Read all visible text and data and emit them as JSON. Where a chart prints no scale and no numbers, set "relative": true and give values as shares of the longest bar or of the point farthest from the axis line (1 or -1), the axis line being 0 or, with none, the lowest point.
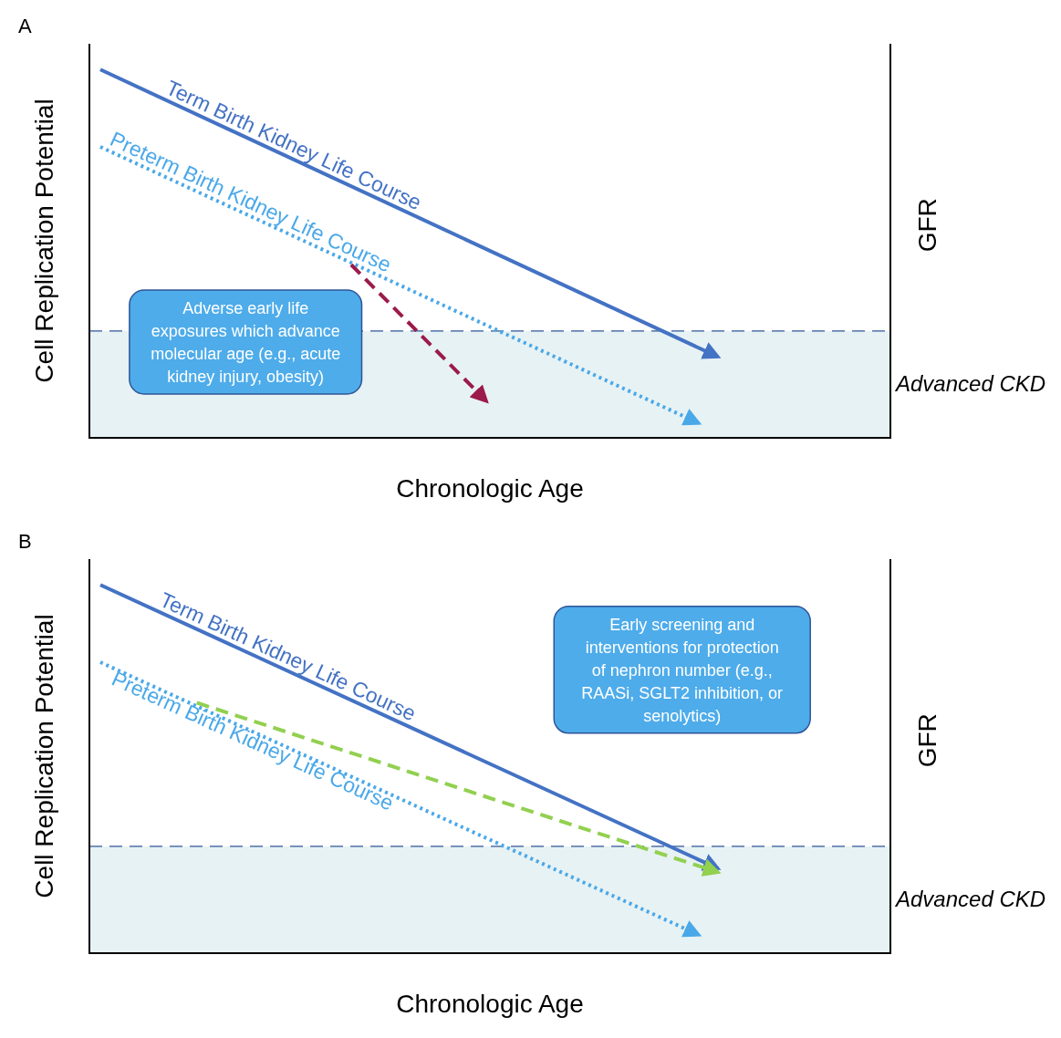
{
  "chart_data": [
    {
      "type": "line",
      "title": "A",
      "xlabel": "Chronologic Age",
      "ylabel": "Cell Replication Potential",
      "y2label": "GFR",
      "relative": true,
      "categories": [
        null,
        null,
        null,
        null,
        null,
        null,
        null,
        null,
        null,
        null,
        null,
        null,
        null,
        null,
        null,
        null,
        null,
        null,
        null,
        null,
        null,
        null,
        null,
        null,
        null,
        null,
        null,
        null,
        null,
        null,
        null,
        null,
        null,
        null,
        null,
        null,
        null,
        null,
        null,
        null,
        null
      ],
      "series": [
        {
          "name": "Term Birth Kidney Life Course",
          "color": "#4472c4",
          "line_style": "solid",
          "values": [
            1,
            null,
            null,
            null,
            null,
            null,
            null,
            null,
            null,
            null,
            null,
            null,
            null,
            null,
            null,
            null,
            null,
            null,
            null,
            null,
            null,
            null,
            null,
            null,
            null,
            null,
            null,
            null,
            null,
            null,
            null,
            null,
            0.22,
            null,
            null,
            null,
            null,
            null,
            null,
            null,
            null
          ]
        },
        {
          "name": "Preterm Birth Kidney Life Course",
          "color": "#4aa8e8",
          "line_style": "dotted",
          "values": [
            0.79,
            null,
            null,
            null,
            null,
            null,
            null,
            null,
            null,
            null,
            null,
            null,
            null,
            null,
            null,
            null,
            null,
            null,
            null,
            null,
            null,
            null,
            null,
            null,
            null,
            null,
            null,
            null,
            null,
            null,
            null,
            0.04,
            null,
            null,
            null,
            null,
            null,
            null,
            null,
            null,
            null
          ]
        },
        {
          "color": "#9b1b4b",
          "line_style": "dashed",
          "values": [
            null,
            null,
            null,
            null,
            null,
            null,
            null,
            null,
            null,
            null,
            null,
            null,
            null,
            0.47,
            null,
            null,
            null,
            null,
            null,
            null,
            0.1,
            null,
            null,
            null,
            null,
            null,
            null,
            null,
            null,
            null,
            null,
            null,
            null,
            null,
            null,
            null,
            null,
            null,
            null,
            null,
            null
          ]
        }
      ],
      "ref_lines": [
        {
          "axis": "y",
          "value": 0.29,
          "color": "#2f5597",
          "line_style": "dashed"
        }
      ],
      "bands": [
        {
          "axis": "y",
          "from": 0,
          "to": 0.29,
          "label": "Advanced CKD",
          "color": "#e7f2f4"
        }
      ],
      "annotations": [
        "Adverse early life exposures which advance molecular age (e.g., acute kidney injury, obesity)"
      ]
    },
    {
      "type": "line",
      "title": "B",
      "xlabel": "Chronologic Age",
      "ylabel": "Cell Replication Potential",
      "y2label": "GFR",
      "relative": true,
      "categories": [
        null,
        null,
        null,
        null,
        null,
        null,
        null,
        null,
        null,
        null,
        null,
        null,
        null,
        null,
        null,
        null,
        null,
        null,
        null,
        null,
        null,
        null,
        null,
        null,
        null,
        null,
        null,
        null,
        null,
        null,
        null,
        null,
        null,
        null,
        null,
        null,
        null,
        null,
        null,
        null,
        null
      ],
      "series": [
        {
          "name": "Term Birth Kidney Life Course",
          "color": "#4472c4",
          "line_style": "solid",
          "values": [
            1,
            null,
            null,
            null,
            null,
            null,
            null,
            null,
            null,
            null,
            null,
            null,
            null,
            null,
            null,
            null,
            null,
            null,
            null,
            null,
            null,
            null,
            null,
            null,
            null,
            null,
            null,
            null,
            null,
            null,
            null,
            null,
            0.23,
            null,
            null,
            null,
            null,
            null,
            null,
            null,
            null
          ]
        },
        {
          "name": "Preterm Birth Kidney Life Course",
          "color": "#4aa8e8",
          "line_style": "dotted",
          "values": [
            0.79,
            null,
            null,
            null,
            null,
            null,
            null,
            null,
            null,
            null,
            null,
            null,
            null,
            null,
            null,
            null,
            null,
            null,
            null,
            null,
            null,
            null,
            null,
            null,
            null,
            null,
            null,
            null,
            null,
            null,
            null,
            0.05,
            null,
            null,
            null,
            null,
            null,
            null,
            null,
            null,
            null
          ]
        },
        {
          "color": "#92d050",
          "line_style": "dashed",
          "values": [
            null,
            null,
            null,
            null,
            null,
            0.68,
            null,
            null,
            null,
            null,
            null,
            null,
            null,
            null,
            null,
            null,
            null,
            null,
            null,
            null,
            null,
            null,
            null,
            null,
            null,
            null,
            null,
            null,
            null,
            null,
            null,
            null,
            0.22,
            null,
            null,
            null,
            null,
            null,
            null,
            null,
            null
          ]
        }
      ],
      "ref_lines": [
        {
          "axis": "y",
          "value": 0.29,
          "color": "#2f5597",
          "line_style": "dashed"
        }
      ],
      "bands": [
        {
          "axis": "y",
          "from": 0,
          "to": 0.29,
          "label": "Advanced CKD",
          "color": "#e7f2f4"
        }
      ],
      "annotations": [
        "Early screening and interventions for protection of nephron number (e.g., RAASi, SGLT2 inhibition, or senolytics)"
      ]
    }
  ]
}
